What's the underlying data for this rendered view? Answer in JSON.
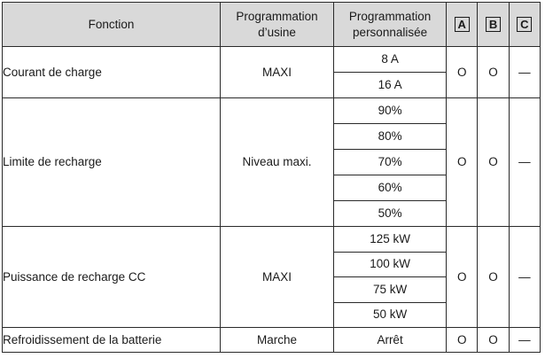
{
  "header": {
    "fonction": "Fonction",
    "usine_line1": "Programmation",
    "usine_line2": "d’usine",
    "perso_line1": "Programmation",
    "perso_line2": "personnalisée",
    "col_a": "A",
    "col_b": "B",
    "col_c": "C"
  },
  "rows": [
    {
      "fonction": "Courant de charge",
      "usine": "MAXI",
      "options": [
        "8 A",
        "16 A"
      ],
      "a": "O",
      "b": "O",
      "c": "—"
    },
    {
      "fonction": "Limite de recharge",
      "usine": "Niveau maxi.",
      "options": [
        "90%",
        "80%",
        "70%",
        "60%",
        "50%"
      ],
      "a": "O",
      "b": "O",
      "c": "—"
    },
    {
      "fonction": "Puissance de recharge CC",
      "usine": "MAXI",
      "options": [
        "125 kW",
        "100 kW",
        "75 kW",
        "50 kW"
      ],
      "a": "O",
      "b": "O",
      "c": "—"
    },
    {
      "fonction": "Refroidissement de la batterie",
      "usine": "Marche",
      "options": [
        "Arrêt"
      ],
      "a": "O",
      "b": "O",
      "c": "—"
    }
  ]
}
